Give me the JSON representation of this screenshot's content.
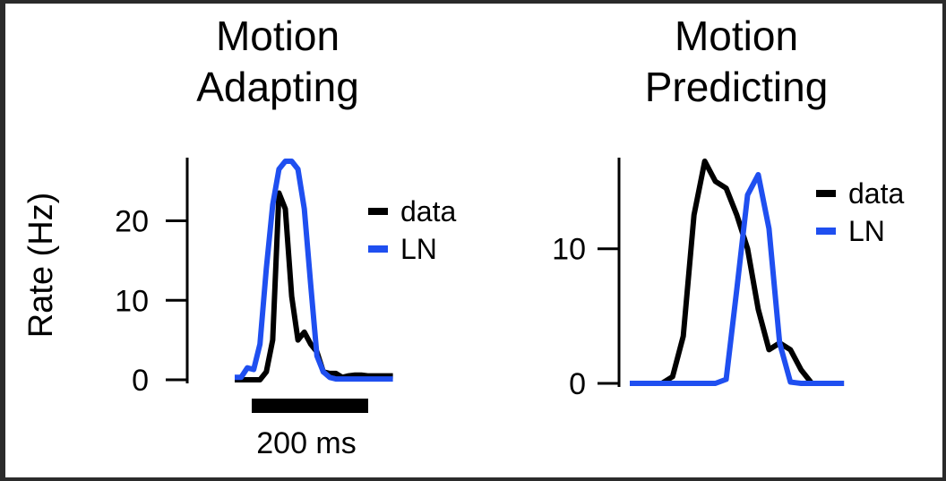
{
  "ylabel": "Rate (Hz)",
  "scale_bar": {
    "label": "200 ms",
    "duration_ms": 200
  },
  "colors": {
    "data": "#000000",
    "LN": "#1f4ff0"
  },
  "chart_data": [
    {
      "type": "line",
      "title_lines": [
        "Motion",
        "Adapting"
      ],
      "ylabel": "Rate (Hz)",
      "ylim": [
        0,
        27.5
      ],
      "yticks": [
        0,
        10,
        20
      ],
      "ytick_labels": [
        "0",
        "10",
        "20"
      ],
      "xlim": [
        -150,
        620
      ],
      "x_unit": "ms",
      "legend": {
        "placement": "right",
        "entries": [
          "data",
          "LN"
        ]
      },
      "series": [
        {
          "name": "data",
          "color": "#000000",
          "x": [
            0,
            20,
            40,
            60,
            80,
            100,
            120,
            140,
            160,
            180,
            200,
            220,
            240,
            260,
            280,
            300,
            320,
            340,
            360,
            380,
            400,
            420,
            440,
            460,
            480,
            500
          ],
          "y": [
            0,
            0,
            0,
            0,
            0,
            1,
            5,
            23.5,
            21.5,
            10.5,
            5,
            6,
            4.5,
            3.5,
            1,
            0.8,
            0.8,
            0.3,
            0.5,
            0.6,
            0.6,
            0.5,
            0.5,
            0.5,
            0.5,
            0.5
          ]
        },
        {
          "name": "LN",
          "color": "#1f4ff0",
          "x": [
            0,
            20,
            40,
            60,
            80,
            100,
            120,
            140,
            160,
            180,
            200,
            220,
            240,
            260,
            280,
            300,
            320,
            340,
            360,
            380,
            400,
            420,
            440,
            460,
            480,
            500
          ],
          "y": [
            0.3,
            0.3,
            1.5,
            1.3,
            4.5,
            14,
            22,
            26.5,
            27.5,
            27.5,
            26.5,
            21.5,
            12,
            3,
            1,
            0.3,
            0.1,
            0.1,
            0.1,
            0.1,
            0.1,
            0.1,
            0.1,
            0.1,
            0.1,
            0.1
          ]
        }
      ]
    },
    {
      "type": "line",
      "title_lines": [
        "Motion",
        "Predicting"
      ],
      "ylabel": "",
      "ylim": [
        0,
        16.5
      ],
      "yticks": [
        0,
        10
      ],
      "ytick_labels": [
        "0",
        "10"
      ],
      "xlim": [
        -20,
        440
      ],
      "x_unit": "ms",
      "legend": {
        "placement": "top-right",
        "entries": [
          "data",
          "LN"
        ]
      },
      "series": [
        {
          "name": "data",
          "color": "#000000",
          "x": [
            0,
            20,
            40,
            60,
            80,
            100,
            120,
            140,
            160,
            180,
            200,
            220,
            240,
            260,
            280,
            300,
            320,
            340,
            360,
            380,
            400
          ],
          "y": [
            0,
            0,
            0,
            0,
            0.5,
            3.5,
            12.5,
            16.5,
            15,
            14.5,
            12.5,
            10,
            5.5,
            2.5,
            3,
            2.5,
            1,
            0,
            0,
            0,
            0
          ]
        },
        {
          "name": "LN",
          "color": "#1f4ff0",
          "x": [
            0,
            20,
            40,
            60,
            80,
            100,
            120,
            140,
            160,
            180,
            200,
            220,
            240,
            260,
            280,
            300,
            320,
            340,
            360,
            380,
            400
          ],
          "y": [
            0,
            0,
            0,
            0,
            0,
            0,
            0,
            0,
            0,
            0.3,
            7,
            14,
            15.5,
            11.5,
            3,
            0.1,
            0,
            0,
            0,
            0,
            0
          ]
        }
      ]
    }
  ]
}
